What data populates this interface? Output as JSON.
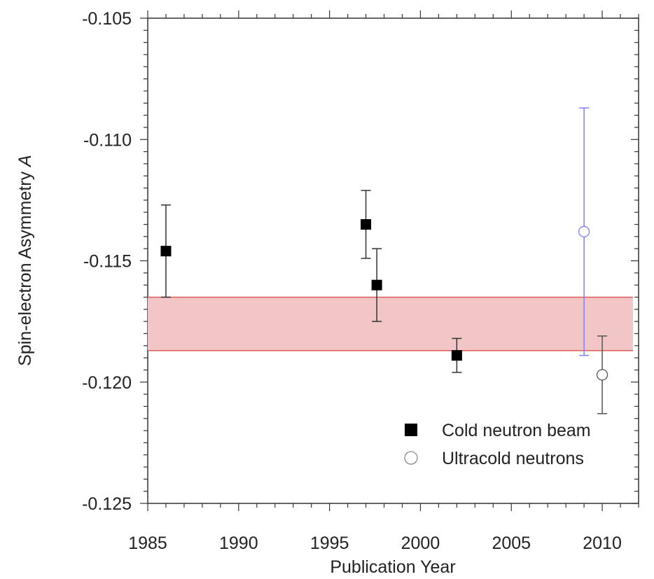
{
  "chart_data": {
    "type": "scatter",
    "xlabel": "Publication Year",
    "ylabel_main": "Spin-electron Asymmetry ",
    "ylabel_symbol": "A",
    "xlim": [
      1985,
      2012
    ],
    "ylim": [
      -0.125,
      -0.105
    ],
    "x_ticks": [
      1985,
      1990,
      1995,
      2000,
      2005,
      2010
    ],
    "x_tick_labels": [
      "1985",
      "1990",
      "1995",
      "2000",
      "2005",
      "2010"
    ],
    "y_ticks": [
      -0.105,
      -0.11,
      -0.115,
      -0.12,
      -0.125
    ],
    "y_tick_labels": [
      "-0.105",
      "-0.110",
      "-0.115",
      "-0.120",
      "-0.125"
    ],
    "band": {
      "y_low": -0.1187,
      "y_high": -0.1165,
      "x_from": 1985,
      "x_to": 2012,
      "fill": "#f2c6c6",
      "edge": "#e05a5a"
    },
    "series": [
      {
        "name": "Cold neutron beam",
        "marker": "filled-square",
        "color": "#000000",
        "error_color": "#333333",
        "points": [
          {
            "x": 1986,
            "y": -0.1146,
            "err_low": -0.1165,
            "err_high": -0.1127
          },
          {
            "x": 1997,
            "y": -0.1135,
            "err_low": -0.1149,
            "err_high": -0.1121
          },
          {
            "x": 1997.6,
            "y": -0.116,
            "err_low": -0.1175,
            "err_high": -0.1145
          },
          {
            "x": 2002,
            "y": -0.1189,
            "err_low": -0.1196,
            "err_high": -0.1182
          }
        ]
      },
      {
        "name": "Ultracold neutrons",
        "marker": "open-circle",
        "color": "#888888",
        "points": [
          {
            "x": 2009,
            "y": -0.1138,
            "err_low": -0.1189,
            "err_high": -0.1087,
            "color": "#8080ff"
          },
          {
            "x": 2010,
            "y": -0.1197,
            "err_low": -0.1213,
            "err_high": -0.1181,
            "color": "#555555"
          }
        ]
      }
    ],
    "legend_position": "bottom-right",
    "grid": false
  }
}
